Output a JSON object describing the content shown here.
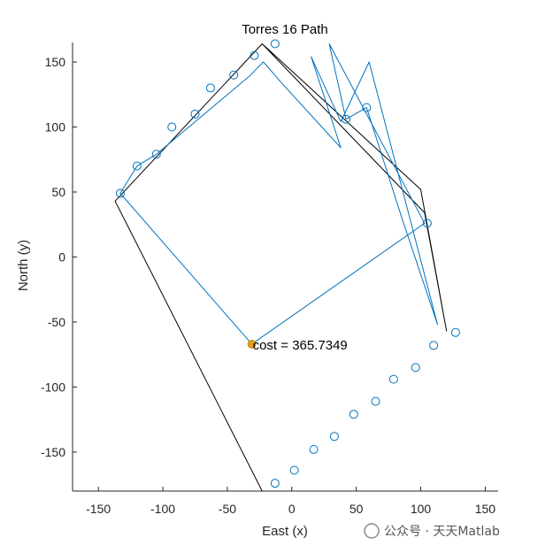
{
  "chart_data": {
    "type": "line",
    "title": "Torres 16 Path",
    "xlabel": "East (x)",
    "ylabel": "North (y)",
    "xlim": [
      -170,
      160
    ],
    "ylim": [
      -180,
      165
    ],
    "xticks": [
      -150,
      -100,
      -50,
      0,
      50,
      100,
      150
    ],
    "yticks": [
      -150,
      -100,
      -50,
      0,
      50,
      100,
      150
    ],
    "grid": false,
    "series": [
      {
        "role": "boundary",
        "color": "#000000",
        "x": [
          -23,
          100,
          120,
          103,
          -23,
          -137,
          -23
        ],
        "y": [
          164,
          52,
          -57,
          34,
          164,
          43,
          -180
        ]
      },
      {
        "role": "path",
        "color": "#0072BD",
        "x": [
          -31,
          103,
          29,
          42,
          58,
          85,
          113,
          60,
          38,
          15,
          38,
          -8,
          -22,
          -33,
          -105,
          -120,
          -133,
          -31
        ],
        "y": [
          -67,
          26,
          164,
          106,
          115,
          31,
          -52,
          150,
          104,
          154,
          84,
          134,
          150,
          139,
          79,
          70,
          49,
          -67
        ]
      }
    ],
    "waypoints": {
      "marker": "circle",
      "x": [
        -133,
        -120,
        -105,
        -93,
        -75,
        -63,
        -45,
        -29,
        -13,
        42,
        58,
        105,
        127,
        110,
        96,
        79,
        65,
        48,
        33,
        17,
        2,
        -13
      ],
      "y": [
        49,
        70,
        79,
        100,
        110,
        130,
        140,
        155,
        164,
        106,
        115,
        26,
        -58,
        -68,
        -85,
        -94,
        -111,
        -121,
        -138,
        -148,
        -164,
        -174
      ]
    },
    "start_point": {
      "x": -31,
      "y": -67,
      "color": "#E3A019"
    },
    "annotation": {
      "text": "cost = 365.7349",
      "x": -31,
      "y": -67
    }
  },
  "watermark": "公众号 · 天天Matlab"
}
